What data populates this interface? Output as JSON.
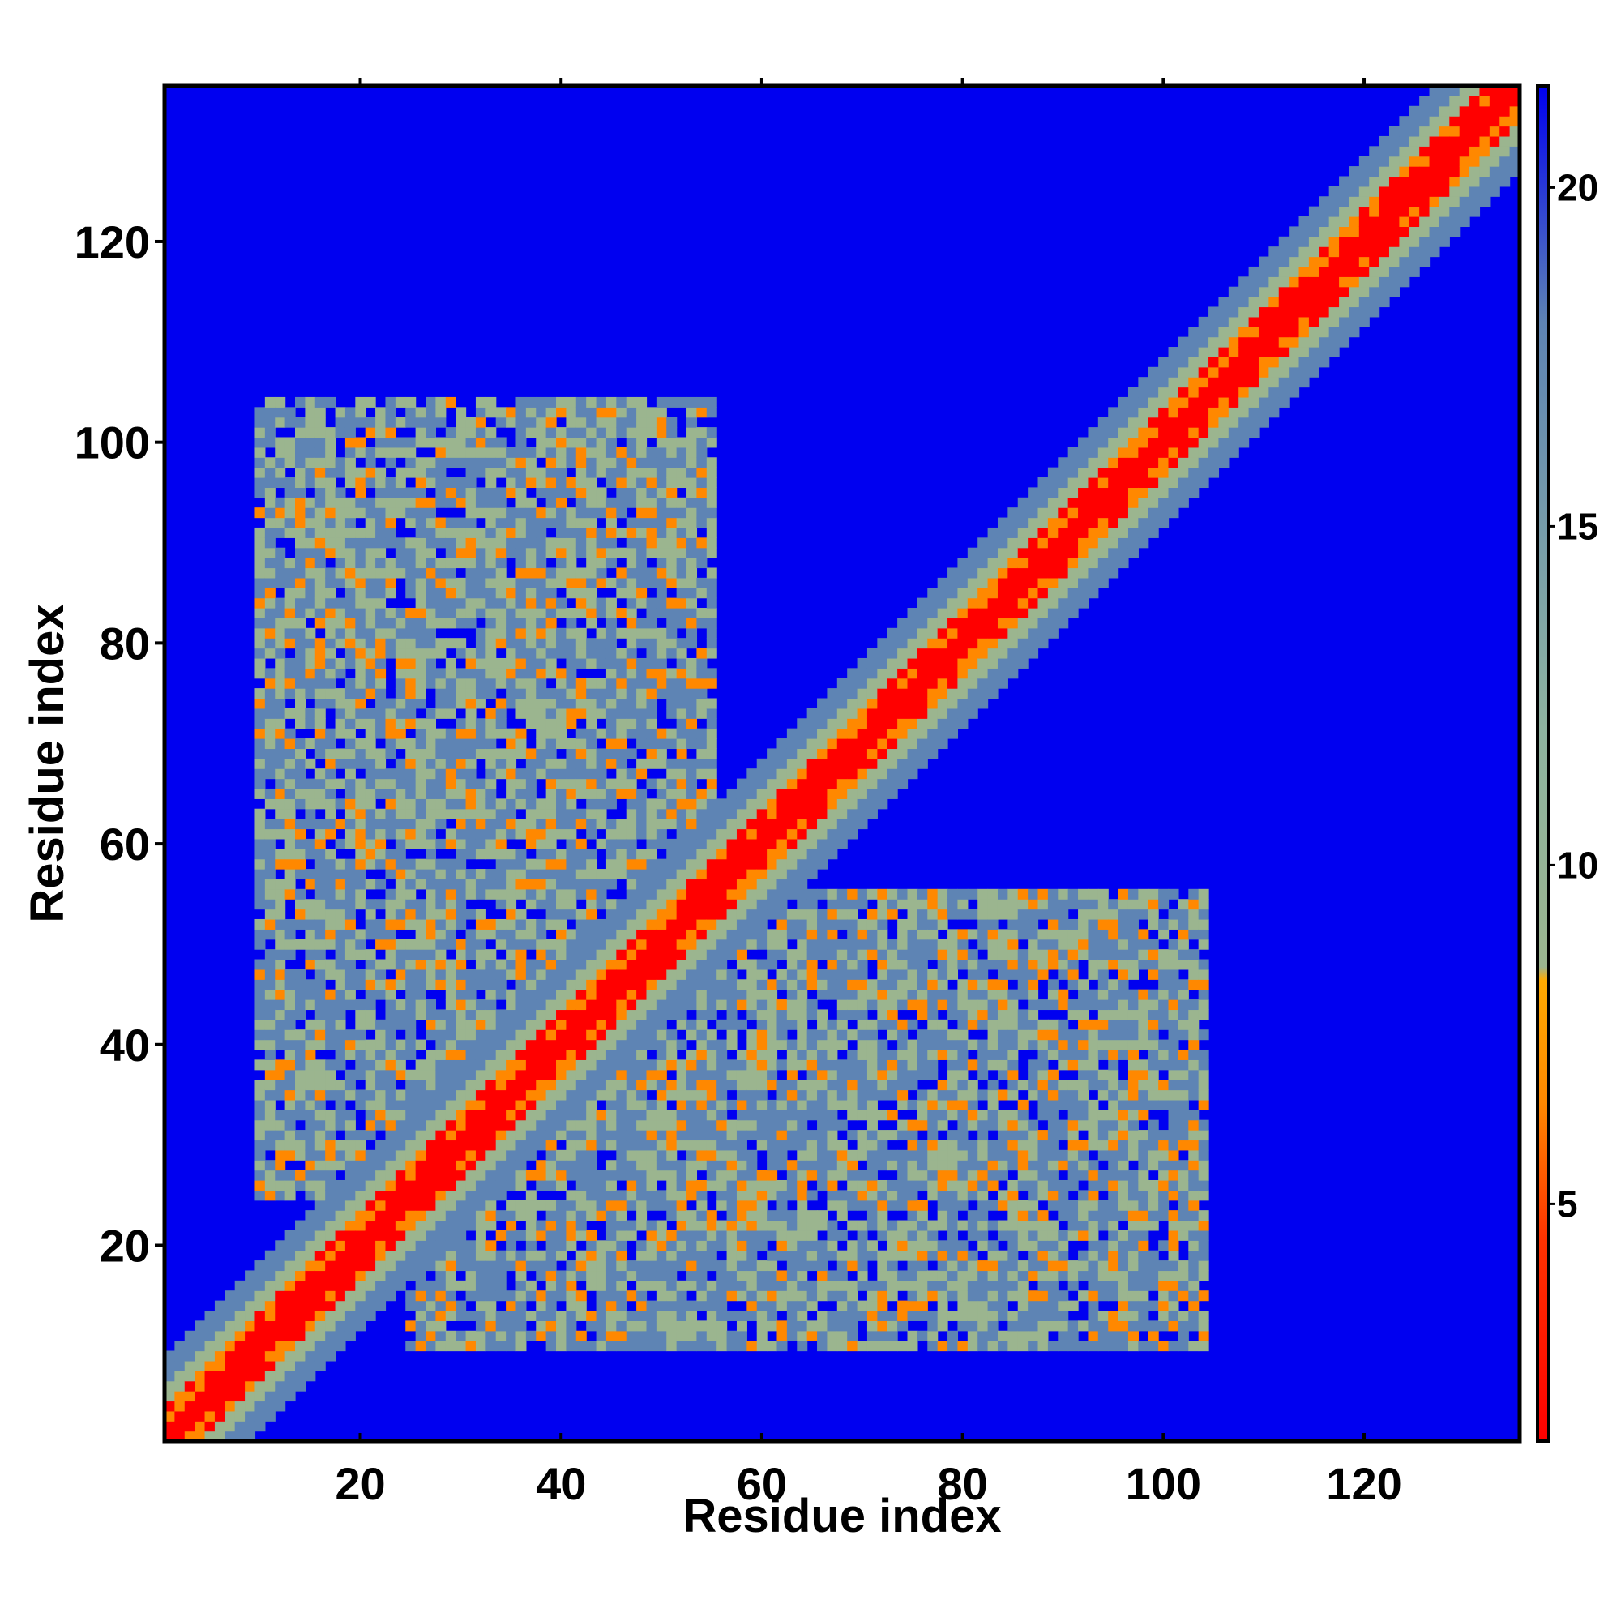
{
  "chart_data": {
    "type": "heatmap",
    "title": "",
    "xlabel": "Residue index",
    "ylabel": "Residue index",
    "xlim": [
      0.5,
      135.5
    ],
    "ylim": [
      0.5,
      135.5
    ],
    "n_residues": 135,
    "x_ticks": [
      20,
      40,
      60,
      80,
      100,
      120
    ],
    "y_ticks": [
      20,
      40,
      60,
      80,
      100,
      120
    ],
    "x_tick_labels": [
      "20",
      "40",
      "60",
      "80",
      "100",
      "120"
    ],
    "y_tick_labels": [
      "20",
      "40",
      "60",
      "80",
      "100",
      "120"
    ],
    "colorbar": {
      "range": [
        1.5,
        21.5
      ],
      "ticks": [
        5,
        10,
        15,
        20
      ],
      "tick_labels": [
        "5",
        "10",
        "15",
        "20"
      ],
      "stops": [
        {
          "value": 1.5,
          "color": "#ff0000"
        },
        {
          "value": 4.5,
          "color": "#ff3300"
        },
        {
          "value": 6.5,
          "color": "#ff8800"
        },
        {
          "value": 8.3,
          "color": "#ffaa00"
        },
        {
          "value": 8.5,
          "color": "#9bb58f"
        },
        {
          "value": 12,
          "color": "#8eb3a0"
        },
        {
          "value": 18,
          "color": "#5e84b4"
        },
        {
          "value": 21.5,
          "color": "#0000f0"
        }
      ]
    },
    "background_value": 21.5,
    "features": {
      "diagonal_band": {
        "core_width_residues": 1.5,
        "outer_width_residues": 8
      },
      "off_diagonal_contact_regions": [
        {
          "x_range": [
            10,
            55
          ],
          "y_range": [
            58,
            104
          ]
        },
        {
          "x_range": [
            58,
            104
          ],
          "y_range": [
            10,
            55
          ]
        },
        {
          "x_range": [
            10,
            55
          ],
          "y_range": [
            25,
            58
          ]
        },
        {
          "x_range": [
            25,
            58
          ],
          "y_range": [
            10,
            55
          ]
        }
      ]
    },
    "colors": {
      "background": "#0000f0",
      "core": "#ff0000",
      "near": "#ff8800",
      "mid": "#9bb58f",
      "far": "#5e84b4"
    }
  },
  "axes": {
    "xlabel": "Residue index",
    "ylabel": "Residue index"
  }
}
